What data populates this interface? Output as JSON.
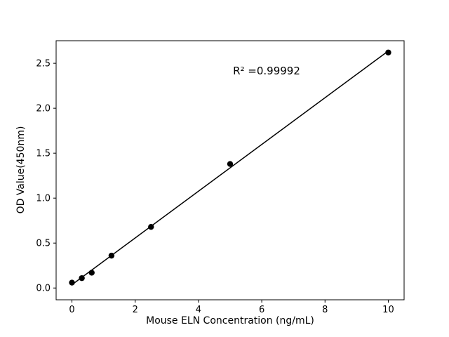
{
  "chart_data": {
    "type": "scatter",
    "title": "",
    "xlabel": "Mouse ELN Concentration (ng/mL)",
    "ylabel": "OD Value(450nm)",
    "annotation": "R² =0.99992",
    "x": [
      0,
      0.3125,
      0.625,
      1.25,
      2.5,
      5,
      10
    ],
    "y": [
      0.06,
      0.11,
      0.17,
      0.36,
      0.68,
      1.38,
      2.62
    ],
    "fit_line": {
      "slope": 0.26,
      "intercept": 0.037,
      "x_start": 0,
      "x_end": 10
    },
    "xlim": [
      -0.5,
      10.5
    ],
    "ylim": [
      -0.131,
      2.751
    ],
    "xticks": [
      0,
      2,
      4,
      6,
      8,
      10
    ],
    "xtick_labels": [
      "0",
      "2",
      "4",
      "6",
      "8",
      "10"
    ],
    "yticks": [
      0.0,
      0.5,
      1.0,
      1.5,
      2.0,
      2.5
    ],
    "ytick_labels": [
      "0.0",
      "0.5",
      "1.0",
      "1.5",
      "2.0",
      "2.5"
    ],
    "grid": false,
    "legend": "none",
    "marker_color": "#000000",
    "line_color": "#000000",
    "axis_color": "#000000"
  }
}
